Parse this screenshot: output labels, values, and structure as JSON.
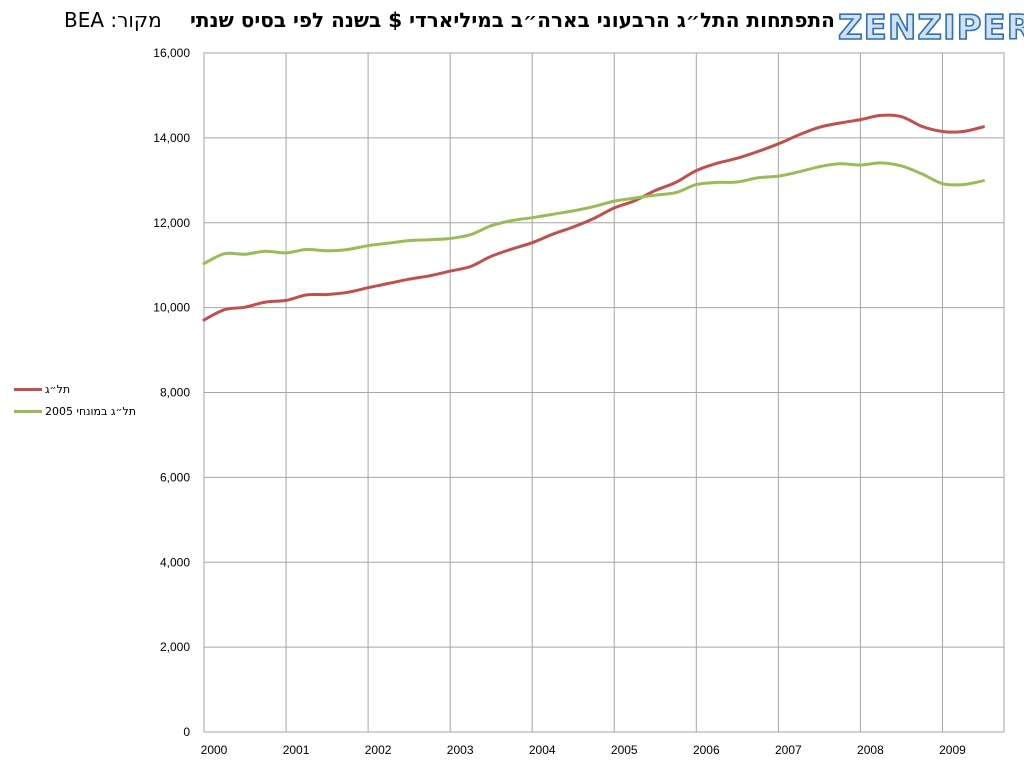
{
  "header": {
    "source": "מקור: BEA",
    "title": "התפתחות התל״ג הרבעוני בארה״ב במיליארדי $ בשנה לפי בסיס שנתי",
    "logo": "ZENZIPER"
  },
  "colors": {
    "series1": "#c0504d",
    "series2": "#9bbb59",
    "grid": "#a6a6a6"
  },
  "chart_data": {
    "type": "line",
    "title": "התפתחות התל״ג הרבעוני בארה״ב במיליארדי $ בשנה לפי בסיס שנתי",
    "xlabel": "",
    "ylabel": "",
    "xlim": [
      2000,
      2009.75
    ],
    "ylim": [
      0,
      16000
    ],
    "x_ticks": [
      2000,
      2001,
      2002,
      2003,
      2004,
      2005,
      2006,
      2007,
      2008,
      2009
    ],
    "y_ticks": [
      0,
      2000,
      4000,
      6000,
      8000,
      10000,
      12000,
      14000,
      16000
    ],
    "y_tick_labels": [
      "0",
      "2,000",
      "4,000",
      "6,000",
      "8,000",
      "10,000",
      "12,000",
      "14,000",
      "16,000"
    ],
    "grid": true,
    "legend_position": "left",
    "x": [
      2000,
      2000.25,
      2000.5,
      2000.75,
      2001,
      2001.25,
      2001.5,
      2001.75,
      2002,
      2002.25,
      2002.5,
      2002.75,
      2003,
      2003.25,
      2003.5,
      2003.75,
      2004,
      2004.25,
      2004.5,
      2004.75,
      2005,
      2005.25,
      2005.5,
      2005.75,
      2006,
      2006.25,
      2006.5,
      2006.75,
      2007,
      2007.25,
      2007.5,
      2007.75,
      2008,
      2008.25,
      2008.5,
      2008.75,
      2009,
      2009.25,
      2009.5
    ],
    "series": [
      {
        "name": "תל״ג",
        "values": [
          9710,
          9950,
          10010,
          10130,
          10170,
          10300,
          10310,
          10360,
          10470,
          10570,
          10670,
          10750,
          10860,
          10970,
          11210,
          11380,
          11530,
          11730,
          11900,
          12100,
          12350,
          12520,
          12760,
          12950,
          13230,
          13400,
          13520,
          13680,
          13860,
          14070,
          14250,
          14350,
          14430,
          14530,
          14500,
          14270,
          14150,
          14150,
          14260
        ]
      },
      {
        "name": "תל״ג במונחי 2005",
        "values": [
          11040,
          11270,
          11260,
          11330,
          11290,
          11370,
          11340,
          11370,
          11460,
          11520,
          11580,
          11600,
          11630,
          11720,
          11930,
          12050,
          12120,
          12200,
          12280,
          12380,
          12510,
          12580,
          12650,
          12710,
          12900,
          12950,
          12960,
          13060,
          13100,
          13200,
          13320,
          13390,
          13360,
          13410,
          13340,
          13150,
          12920,
          12900,
          12990
        ]
      }
    ]
  }
}
